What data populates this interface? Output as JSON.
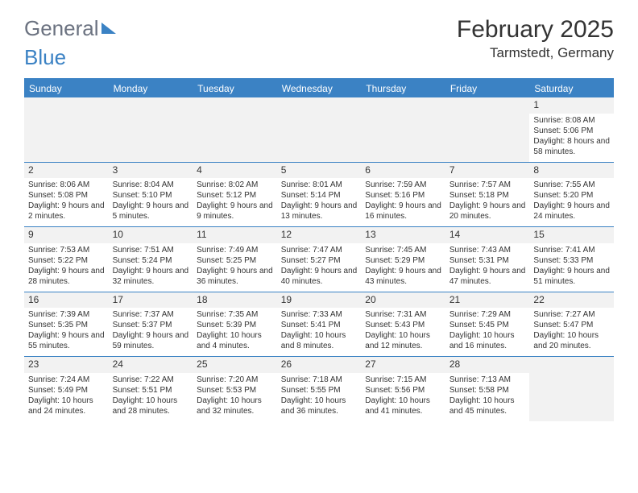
{
  "logo": {
    "part1": "General",
    "part2": "Blue"
  },
  "title": "February 2025",
  "location": "Tarmstedt, Germany",
  "day_headers": [
    "Sunday",
    "Monday",
    "Tuesday",
    "Wednesday",
    "Thursday",
    "Friday",
    "Saturday"
  ],
  "colors": {
    "accent": "#3b82c4",
    "header_text": "#ffffff",
    "text": "#333333",
    "daynum_bg": "#f2f2f2",
    "empty_bg": "#f2f2f2",
    "bg": "#ffffff"
  },
  "weeks": [
    [
      null,
      null,
      null,
      null,
      null,
      null,
      {
        "n": "1",
        "sunrise": "Sunrise: 8:08 AM",
        "sunset": "Sunset: 5:06 PM",
        "daylight": "Daylight: 8 hours and 58 minutes."
      }
    ],
    [
      {
        "n": "2",
        "sunrise": "Sunrise: 8:06 AM",
        "sunset": "Sunset: 5:08 PM",
        "daylight": "Daylight: 9 hours and 2 minutes."
      },
      {
        "n": "3",
        "sunrise": "Sunrise: 8:04 AM",
        "sunset": "Sunset: 5:10 PM",
        "daylight": "Daylight: 9 hours and 5 minutes."
      },
      {
        "n": "4",
        "sunrise": "Sunrise: 8:02 AM",
        "sunset": "Sunset: 5:12 PM",
        "daylight": "Daylight: 9 hours and 9 minutes."
      },
      {
        "n": "5",
        "sunrise": "Sunrise: 8:01 AM",
        "sunset": "Sunset: 5:14 PM",
        "daylight": "Daylight: 9 hours and 13 minutes."
      },
      {
        "n": "6",
        "sunrise": "Sunrise: 7:59 AM",
        "sunset": "Sunset: 5:16 PM",
        "daylight": "Daylight: 9 hours and 16 minutes."
      },
      {
        "n": "7",
        "sunrise": "Sunrise: 7:57 AM",
        "sunset": "Sunset: 5:18 PM",
        "daylight": "Daylight: 9 hours and 20 minutes."
      },
      {
        "n": "8",
        "sunrise": "Sunrise: 7:55 AM",
        "sunset": "Sunset: 5:20 PM",
        "daylight": "Daylight: 9 hours and 24 minutes."
      }
    ],
    [
      {
        "n": "9",
        "sunrise": "Sunrise: 7:53 AM",
        "sunset": "Sunset: 5:22 PM",
        "daylight": "Daylight: 9 hours and 28 minutes."
      },
      {
        "n": "10",
        "sunrise": "Sunrise: 7:51 AM",
        "sunset": "Sunset: 5:24 PM",
        "daylight": "Daylight: 9 hours and 32 minutes."
      },
      {
        "n": "11",
        "sunrise": "Sunrise: 7:49 AM",
        "sunset": "Sunset: 5:25 PM",
        "daylight": "Daylight: 9 hours and 36 minutes."
      },
      {
        "n": "12",
        "sunrise": "Sunrise: 7:47 AM",
        "sunset": "Sunset: 5:27 PM",
        "daylight": "Daylight: 9 hours and 40 minutes."
      },
      {
        "n": "13",
        "sunrise": "Sunrise: 7:45 AM",
        "sunset": "Sunset: 5:29 PM",
        "daylight": "Daylight: 9 hours and 43 minutes."
      },
      {
        "n": "14",
        "sunrise": "Sunrise: 7:43 AM",
        "sunset": "Sunset: 5:31 PM",
        "daylight": "Daylight: 9 hours and 47 minutes."
      },
      {
        "n": "15",
        "sunrise": "Sunrise: 7:41 AM",
        "sunset": "Sunset: 5:33 PM",
        "daylight": "Daylight: 9 hours and 51 minutes."
      }
    ],
    [
      {
        "n": "16",
        "sunrise": "Sunrise: 7:39 AM",
        "sunset": "Sunset: 5:35 PM",
        "daylight": "Daylight: 9 hours and 55 minutes."
      },
      {
        "n": "17",
        "sunrise": "Sunrise: 7:37 AM",
        "sunset": "Sunset: 5:37 PM",
        "daylight": "Daylight: 9 hours and 59 minutes."
      },
      {
        "n": "18",
        "sunrise": "Sunrise: 7:35 AM",
        "sunset": "Sunset: 5:39 PM",
        "daylight": "Daylight: 10 hours and 4 minutes."
      },
      {
        "n": "19",
        "sunrise": "Sunrise: 7:33 AM",
        "sunset": "Sunset: 5:41 PM",
        "daylight": "Daylight: 10 hours and 8 minutes."
      },
      {
        "n": "20",
        "sunrise": "Sunrise: 7:31 AM",
        "sunset": "Sunset: 5:43 PM",
        "daylight": "Daylight: 10 hours and 12 minutes."
      },
      {
        "n": "21",
        "sunrise": "Sunrise: 7:29 AM",
        "sunset": "Sunset: 5:45 PM",
        "daylight": "Daylight: 10 hours and 16 minutes."
      },
      {
        "n": "22",
        "sunrise": "Sunrise: 7:27 AM",
        "sunset": "Sunset: 5:47 PM",
        "daylight": "Daylight: 10 hours and 20 minutes."
      }
    ],
    [
      {
        "n": "23",
        "sunrise": "Sunrise: 7:24 AM",
        "sunset": "Sunset: 5:49 PM",
        "daylight": "Daylight: 10 hours and 24 minutes."
      },
      {
        "n": "24",
        "sunrise": "Sunrise: 7:22 AM",
        "sunset": "Sunset: 5:51 PM",
        "daylight": "Daylight: 10 hours and 28 minutes."
      },
      {
        "n": "25",
        "sunrise": "Sunrise: 7:20 AM",
        "sunset": "Sunset: 5:53 PM",
        "daylight": "Daylight: 10 hours and 32 minutes."
      },
      {
        "n": "26",
        "sunrise": "Sunrise: 7:18 AM",
        "sunset": "Sunset: 5:55 PM",
        "daylight": "Daylight: 10 hours and 36 minutes."
      },
      {
        "n": "27",
        "sunrise": "Sunrise: 7:15 AM",
        "sunset": "Sunset: 5:56 PM",
        "daylight": "Daylight: 10 hours and 41 minutes."
      },
      {
        "n": "28",
        "sunrise": "Sunrise: 7:13 AM",
        "sunset": "Sunset: 5:58 PM",
        "daylight": "Daylight: 10 hours and 45 minutes."
      },
      null
    ]
  ]
}
